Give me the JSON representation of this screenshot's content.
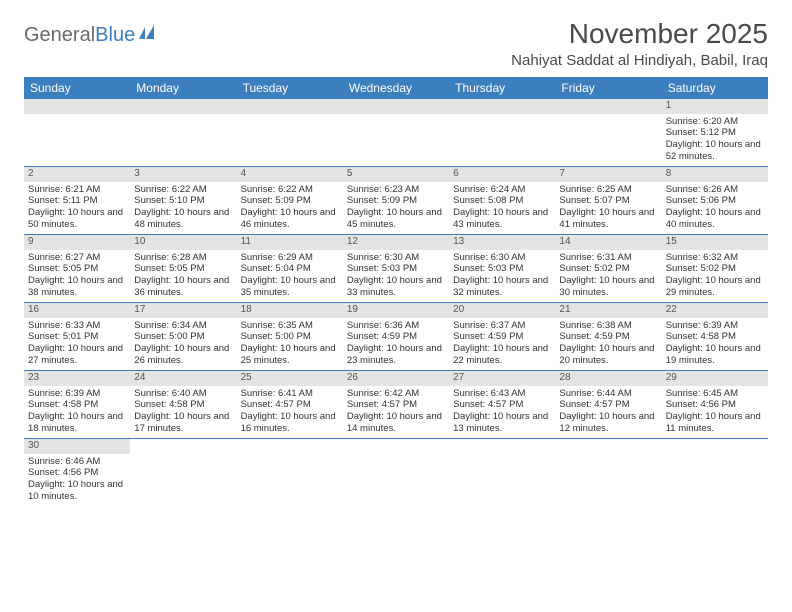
{
  "logo": {
    "text1": "General",
    "text2": "Blue"
  },
  "title": "November 2025",
  "location": "Nahiyat Saddat al Hindiyah, Babil, Iraq",
  "colors": {
    "header_bg": "#3b7fbf",
    "header_text": "#ffffff",
    "daynum_bg": "#e4e4e4",
    "border": "#3b7fbf",
    "logo_gray": "#6b6b6b",
    "logo_blue": "#3f7fbf"
  },
  "weekdays": [
    "Sunday",
    "Monday",
    "Tuesday",
    "Wednesday",
    "Thursday",
    "Friday",
    "Saturday"
  ],
  "weeks": [
    [
      null,
      null,
      null,
      null,
      null,
      null,
      {
        "n": "1",
        "sr": "Sunrise: 6:20 AM",
        "ss": "Sunset: 5:12 PM",
        "dl": "Daylight: 10 hours and 52 minutes."
      }
    ],
    [
      {
        "n": "2",
        "sr": "Sunrise: 6:21 AM",
        "ss": "Sunset: 5:11 PM",
        "dl": "Daylight: 10 hours and 50 minutes."
      },
      {
        "n": "3",
        "sr": "Sunrise: 6:22 AM",
        "ss": "Sunset: 5:10 PM",
        "dl": "Daylight: 10 hours and 48 minutes."
      },
      {
        "n": "4",
        "sr": "Sunrise: 6:22 AM",
        "ss": "Sunset: 5:09 PM",
        "dl": "Daylight: 10 hours and 46 minutes."
      },
      {
        "n": "5",
        "sr": "Sunrise: 6:23 AM",
        "ss": "Sunset: 5:09 PM",
        "dl": "Daylight: 10 hours and 45 minutes."
      },
      {
        "n": "6",
        "sr": "Sunrise: 6:24 AM",
        "ss": "Sunset: 5:08 PM",
        "dl": "Daylight: 10 hours and 43 minutes."
      },
      {
        "n": "7",
        "sr": "Sunrise: 6:25 AM",
        "ss": "Sunset: 5:07 PM",
        "dl": "Daylight: 10 hours and 41 minutes."
      },
      {
        "n": "8",
        "sr": "Sunrise: 6:26 AM",
        "ss": "Sunset: 5:06 PM",
        "dl": "Daylight: 10 hours and 40 minutes."
      }
    ],
    [
      {
        "n": "9",
        "sr": "Sunrise: 6:27 AM",
        "ss": "Sunset: 5:05 PM",
        "dl": "Daylight: 10 hours and 38 minutes."
      },
      {
        "n": "10",
        "sr": "Sunrise: 6:28 AM",
        "ss": "Sunset: 5:05 PM",
        "dl": "Daylight: 10 hours and 36 minutes."
      },
      {
        "n": "11",
        "sr": "Sunrise: 6:29 AM",
        "ss": "Sunset: 5:04 PM",
        "dl": "Daylight: 10 hours and 35 minutes."
      },
      {
        "n": "12",
        "sr": "Sunrise: 6:30 AM",
        "ss": "Sunset: 5:03 PM",
        "dl": "Daylight: 10 hours and 33 minutes."
      },
      {
        "n": "13",
        "sr": "Sunrise: 6:30 AM",
        "ss": "Sunset: 5:03 PM",
        "dl": "Daylight: 10 hours and 32 minutes."
      },
      {
        "n": "14",
        "sr": "Sunrise: 6:31 AM",
        "ss": "Sunset: 5:02 PM",
        "dl": "Daylight: 10 hours and 30 minutes."
      },
      {
        "n": "15",
        "sr": "Sunrise: 6:32 AM",
        "ss": "Sunset: 5:02 PM",
        "dl": "Daylight: 10 hours and 29 minutes."
      }
    ],
    [
      {
        "n": "16",
        "sr": "Sunrise: 6:33 AM",
        "ss": "Sunset: 5:01 PM",
        "dl": "Daylight: 10 hours and 27 minutes."
      },
      {
        "n": "17",
        "sr": "Sunrise: 6:34 AM",
        "ss": "Sunset: 5:00 PM",
        "dl": "Daylight: 10 hours and 26 minutes."
      },
      {
        "n": "18",
        "sr": "Sunrise: 6:35 AM",
        "ss": "Sunset: 5:00 PM",
        "dl": "Daylight: 10 hours and 25 minutes."
      },
      {
        "n": "19",
        "sr": "Sunrise: 6:36 AM",
        "ss": "Sunset: 4:59 PM",
        "dl": "Daylight: 10 hours and 23 minutes."
      },
      {
        "n": "20",
        "sr": "Sunrise: 6:37 AM",
        "ss": "Sunset: 4:59 PM",
        "dl": "Daylight: 10 hours and 22 minutes."
      },
      {
        "n": "21",
        "sr": "Sunrise: 6:38 AM",
        "ss": "Sunset: 4:59 PM",
        "dl": "Daylight: 10 hours and 20 minutes."
      },
      {
        "n": "22",
        "sr": "Sunrise: 6:39 AM",
        "ss": "Sunset: 4:58 PM",
        "dl": "Daylight: 10 hours and 19 minutes."
      }
    ],
    [
      {
        "n": "23",
        "sr": "Sunrise: 6:39 AM",
        "ss": "Sunset: 4:58 PM",
        "dl": "Daylight: 10 hours and 18 minutes."
      },
      {
        "n": "24",
        "sr": "Sunrise: 6:40 AM",
        "ss": "Sunset: 4:58 PM",
        "dl": "Daylight: 10 hours and 17 minutes."
      },
      {
        "n": "25",
        "sr": "Sunrise: 6:41 AM",
        "ss": "Sunset: 4:57 PM",
        "dl": "Daylight: 10 hours and 16 minutes."
      },
      {
        "n": "26",
        "sr": "Sunrise: 6:42 AM",
        "ss": "Sunset: 4:57 PM",
        "dl": "Daylight: 10 hours and 14 minutes."
      },
      {
        "n": "27",
        "sr": "Sunrise: 6:43 AM",
        "ss": "Sunset: 4:57 PM",
        "dl": "Daylight: 10 hours and 13 minutes."
      },
      {
        "n": "28",
        "sr": "Sunrise: 6:44 AM",
        "ss": "Sunset: 4:57 PM",
        "dl": "Daylight: 10 hours and 12 minutes."
      },
      {
        "n": "29",
        "sr": "Sunrise: 6:45 AM",
        "ss": "Sunset: 4:56 PM",
        "dl": "Daylight: 10 hours and 11 minutes."
      }
    ],
    [
      {
        "n": "30",
        "sr": "Sunrise: 6:46 AM",
        "ss": "Sunset: 4:56 PM",
        "dl": "Daylight: 10 hours and 10 minutes."
      },
      null,
      null,
      null,
      null,
      null,
      null
    ]
  ]
}
